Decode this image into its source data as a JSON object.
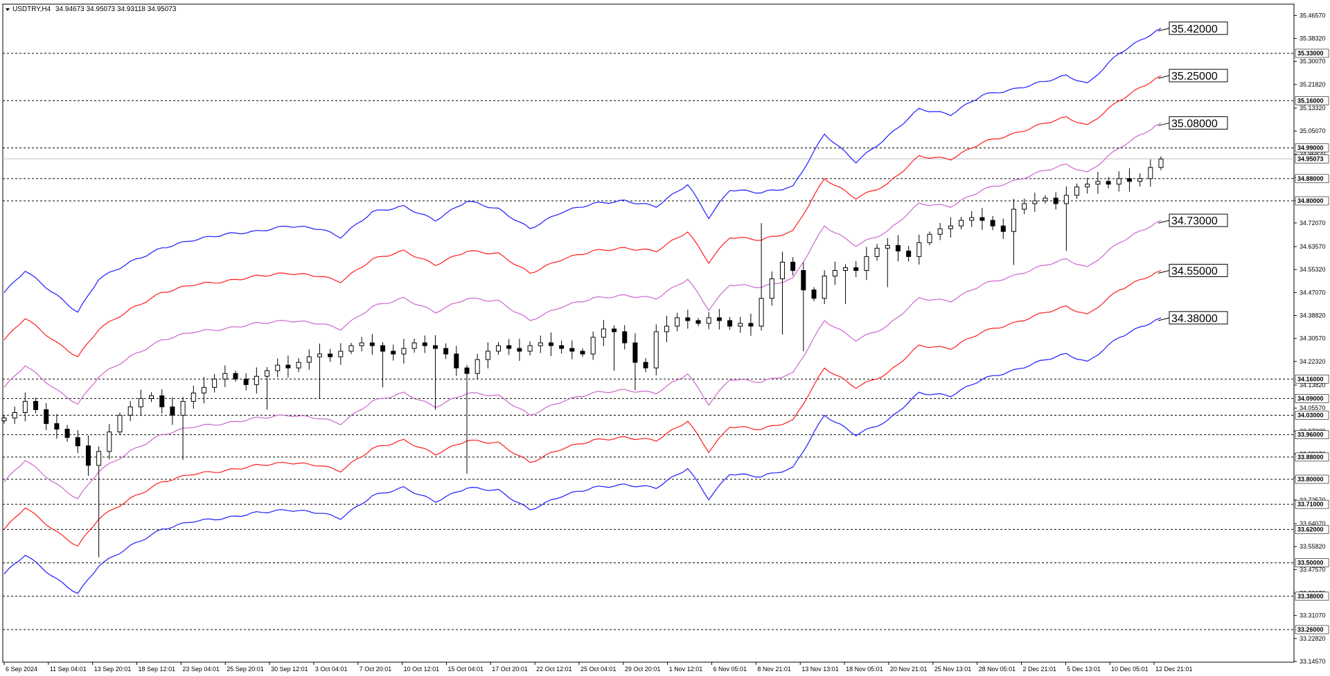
{
  "header": {
    "symbol": "USDTRY,H4",
    "ohlc": "34.94673 34.95073 34.93118 34.95073"
  },
  "colors": {
    "outer_band": "#1a1aff",
    "middle_band": "#ff1a1a",
    "inner_band": "#cc66cc",
    "candles": "#000000",
    "grid_line": "#000000",
    "bid_line": "#c0c0c0"
  },
  "chart_data": {
    "type": "candlestick",
    "title": "USDTRY,H4",
    "ylim": [
      33.1457,
      35.4667
    ],
    "y_ticks": [
      "35.46570",
      "35.38320",
      "35.30070",
      "35.21820",
      "35.13320",
      "35.05070",
      "34.96820",
      "34.88320",
      "34.80070",
      "34.72070",
      "34.63570",
      "34.55320",
      "34.47070",
      "34.38820",
      "34.30570",
      "34.22320",
      "34.13820",
      "34.05570",
      "33.97320",
      "33.89070",
      "33.80570",
      "33.72570",
      "33.64070",
      "33.55820",
      "33.47570",
      "33.39070",
      "33.31070",
      "33.22820",
      "33.14570"
    ],
    "x_ticks": [
      "6 Sep 2024",
      "11 Sep 04:01",
      "13 Sep 20:01",
      "18 Sep 12:01",
      "23 Sep 04:01",
      "25 Sep 20:01",
      "30 Sep 12:01",
      "3 Oct 04:01",
      "7 Oct 20:01",
      "10 Oct 12:01",
      "15 Oct 04:01",
      "17 Oct 20:01",
      "22 Oct 12:01",
      "25 Oct 04:01",
      "29 Oct 20:01",
      "1 Nov 12:01",
      "6 Nov 05:01",
      "8 Nov 21:01",
      "13 Nov 13:01",
      "18 Nov 05:01",
      "20 Nov 21:01",
      "25 Nov 13:01",
      "28 Nov 05:01",
      "2 Dec 21:01",
      "5 Dec 13:01",
      "10 Dec 05:01",
      "12 Dec 21:01"
    ],
    "horizontal_levels": [
      "35.33000",
      "35.16000",
      "34.99000",
      "34.88000",
      "34.80000",
      "34.16000",
      "34.09000",
      "34.03000",
      "33.96000",
      "33.88000",
      "33.80000",
      "33.71000",
      "33.62000",
      "33.50000",
      "33.38000",
      "33.26000"
    ],
    "current_price": "34.95073",
    "band_labels": [
      "35.42000",
      "35.25000",
      "35.08000",
      "34.73000",
      "34.55000",
      "34.38000"
    ],
    "series": [
      {
        "name": "upper_outer",
        "color_key": "outer_band",
        "points": [
          [
            0,
            34.47
          ],
          [
            2,
            34.55
          ],
          [
            5,
            34.46
          ],
          [
            7,
            34.4
          ],
          [
            9,
            34.52
          ],
          [
            12,
            34.58
          ],
          [
            15,
            34.63
          ],
          [
            18,
            34.66
          ],
          [
            21,
            34.68
          ],
          [
            24,
            34.69
          ],
          [
            27,
            34.71
          ],
          [
            30,
            34.7
          ],
          [
            32,
            34.67
          ],
          [
            35,
            34.76
          ],
          [
            38,
            34.78
          ],
          [
            41,
            34.73
          ],
          [
            44,
            34.8
          ],
          [
            47,
            34.77
          ],
          [
            50,
            34.7
          ],
          [
            53,
            34.76
          ],
          [
            56,
            34.79
          ],
          [
            59,
            34.8
          ],
          [
            62,
            34.78
          ],
          [
            65,
            34.86
          ],
          [
            67,
            34.74
          ],
          [
            69,
            34.84
          ],
          [
            72,
            34.83
          ],
          [
            75,
            34.85
          ],
          [
            78,
            35.04
          ],
          [
            81,
            34.94
          ],
          [
            84,
            35.03
          ],
          [
            87,
            35.13
          ],
          [
            90,
            35.11
          ],
          [
            93,
            35.18
          ],
          [
            96,
            35.2
          ],
          [
            99,
            35.23
          ],
          [
            101,
            35.25
          ],
          [
            103,
            35.22
          ],
          [
            106,
            35.33
          ],
          [
            110,
            35.42
          ]
        ]
      },
      {
        "name": "upper_middle",
        "color_key": "middle_band",
        "points": [
          [
            0,
            34.3
          ],
          [
            2,
            34.38
          ],
          [
            5,
            34.29
          ],
          [
            7,
            34.24
          ],
          [
            9,
            34.34
          ],
          [
            12,
            34.41
          ],
          [
            15,
            34.47
          ],
          [
            18,
            34.5
          ],
          [
            21,
            34.51
          ],
          [
            24,
            34.53
          ],
          [
            27,
            34.54
          ],
          [
            30,
            34.53
          ],
          [
            32,
            34.51
          ],
          [
            35,
            34.59
          ],
          [
            38,
            34.62
          ],
          [
            41,
            34.57
          ],
          [
            44,
            34.62
          ],
          [
            47,
            34.61
          ],
          [
            50,
            34.54
          ],
          [
            53,
            34.59
          ],
          [
            56,
            34.62
          ],
          [
            59,
            34.63
          ],
          [
            62,
            34.62
          ],
          [
            65,
            34.69
          ],
          [
            67,
            34.58
          ],
          [
            69,
            34.67
          ],
          [
            72,
            34.66
          ],
          [
            75,
            34.69
          ],
          [
            78,
            34.88
          ],
          [
            81,
            34.81
          ],
          [
            84,
            34.86
          ],
          [
            87,
            34.96
          ],
          [
            90,
            34.95
          ],
          [
            93,
            35.01
          ],
          [
            96,
            35.04
          ],
          [
            99,
            35.08
          ],
          [
            101,
            35.1
          ],
          [
            103,
            35.07
          ],
          [
            106,
            35.16
          ],
          [
            110,
            35.25
          ]
        ]
      },
      {
        "name": "upper_inner",
        "color_key": "inner_band",
        "points": [
          [
            0,
            34.13
          ],
          [
            2,
            34.21
          ],
          [
            5,
            34.12
          ],
          [
            7,
            34.07
          ],
          [
            9,
            34.17
          ],
          [
            12,
            34.24
          ],
          [
            15,
            34.3
          ],
          [
            18,
            34.33
          ],
          [
            21,
            34.34
          ],
          [
            24,
            34.36
          ],
          [
            27,
            34.37
          ],
          [
            30,
            34.36
          ],
          [
            32,
            34.34
          ],
          [
            35,
            34.42
          ],
          [
            38,
            34.45
          ],
          [
            41,
            34.4
          ],
          [
            44,
            34.45
          ],
          [
            47,
            34.44
          ],
          [
            50,
            34.37
          ],
          [
            53,
            34.42
          ],
          [
            56,
            34.45
          ],
          [
            59,
            34.46
          ],
          [
            62,
            34.45
          ],
          [
            65,
            34.52
          ],
          [
            67,
            34.41
          ],
          [
            69,
            34.5
          ],
          [
            72,
            34.49
          ],
          [
            75,
            34.52
          ],
          [
            78,
            34.71
          ],
          [
            81,
            34.64
          ],
          [
            84,
            34.69
          ],
          [
            87,
            34.79
          ],
          [
            90,
            34.78
          ],
          [
            93,
            34.84
          ],
          [
            96,
            34.87
          ],
          [
            99,
            34.91
          ],
          [
            101,
            34.93
          ],
          [
            103,
            34.9
          ],
          [
            106,
            34.99
          ],
          [
            110,
            35.08
          ]
        ]
      },
      {
        "name": "lower_inner",
        "color_key": "inner_band",
        "points": [
          [
            0,
            33.79
          ],
          [
            2,
            33.87
          ],
          [
            5,
            33.78
          ],
          [
            7,
            33.73
          ],
          [
            9,
            33.83
          ],
          [
            12,
            33.9
          ],
          [
            15,
            33.96
          ],
          [
            18,
            33.99
          ],
          [
            21,
            34.0
          ],
          [
            24,
            34.02
          ],
          [
            27,
            34.03
          ],
          [
            30,
            34.02
          ],
          [
            32,
            34.0
          ],
          [
            35,
            34.08
          ],
          [
            38,
            34.11
          ],
          [
            41,
            34.06
          ],
          [
            44,
            34.11
          ],
          [
            47,
            34.1
          ],
          [
            50,
            34.03
          ],
          [
            53,
            34.08
          ],
          [
            56,
            34.11
          ],
          [
            59,
            34.12
          ],
          [
            62,
            34.11
          ],
          [
            65,
            34.18
          ],
          [
            67,
            34.07
          ],
          [
            69,
            34.16
          ],
          [
            72,
            34.15
          ],
          [
            75,
            34.18
          ],
          [
            78,
            34.37
          ],
          [
            81,
            34.3
          ],
          [
            84,
            34.35
          ],
          [
            87,
            34.45
          ],
          [
            90,
            34.44
          ],
          [
            93,
            34.5
          ],
          [
            96,
            34.53
          ],
          [
            99,
            34.57
          ],
          [
            101,
            34.59
          ],
          [
            103,
            34.56
          ],
          [
            106,
            34.65
          ],
          [
            110,
            34.73
          ]
        ]
      },
      {
        "name": "lower_middle",
        "color_key": "middle_band",
        "points": [
          [
            0,
            33.62
          ],
          [
            2,
            33.7
          ],
          [
            5,
            33.61
          ],
          [
            7,
            33.56
          ],
          [
            9,
            33.66
          ],
          [
            12,
            33.73
          ],
          [
            15,
            33.79
          ],
          [
            18,
            33.82
          ],
          [
            21,
            33.83
          ],
          [
            24,
            33.85
          ],
          [
            27,
            33.86
          ],
          [
            30,
            33.85
          ],
          [
            32,
            33.83
          ],
          [
            35,
            33.91
          ],
          [
            38,
            33.94
          ],
          [
            41,
            33.89
          ],
          [
            44,
            33.94
          ],
          [
            47,
            33.93
          ],
          [
            50,
            33.86
          ],
          [
            53,
            33.91
          ],
          [
            56,
            33.94
          ],
          [
            59,
            33.95
          ],
          [
            62,
            33.94
          ],
          [
            65,
            34.01
          ],
          [
            67,
            33.9
          ],
          [
            69,
            33.99
          ],
          [
            72,
            33.98
          ],
          [
            75,
            34.01
          ],
          [
            78,
            34.2
          ],
          [
            81,
            34.13
          ],
          [
            84,
            34.18
          ],
          [
            87,
            34.28
          ],
          [
            90,
            34.27
          ],
          [
            93,
            34.33
          ],
          [
            96,
            34.36
          ],
          [
            99,
            34.4
          ],
          [
            101,
            34.42
          ],
          [
            103,
            34.39
          ],
          [
            106,
            34.48
          ],
          [
            110,
            34.55
          ]
        ]
      },
      {
        "name": "lower_outer",
        "color_key": "outer_band",
        "points": [
          [
            0,
            33.46
          ],
          [
            2,
            33.53
          ],
          [
            5,
            33.44
          ],
          [
            7,
            33.39
          ],
          [
            9,
            33.49
          ],
          [
            12,
            33.56
          ],
          [
            15,
            33.62
          ],
          [
            18,
            33.65
          ],
          [
            21,
            33.66
          ],
          [
            24,
            33.68
          ],
          [
            27,
            33.69
          ],
          [
            30,
            33.68
          ],
          [
            32,
            33.66
          ],
          [
            35,
            33.74
          ],
          [
            38,
            33.77
          ],
          [
            41,
            33.72
          ],
          [
            44,
            33.77
          ],
          [
            47,
            33.76
          ],
          [
            50,
            33.69
          ],
          [
            53,
            33.74
          ],
          [
            56,
            33.77
          ],
          [
            59,
            33.78
          ],
          [
            62,
            33.77
          ],
          [
            65,
            33.84
          ],
          [
            67,
            33.73
          ],
          [
            69,
            33.82
          ],
          [
            72,
            33.81
          ],
          [
            75,
            33.84
          ],
          [
            78,
            34.03
          ],
          [
            81,
            33.96
          ],
          [
            84,
            34.01
          ],
          [
            87,
            34.11
          ],
          [
            90,
            34.1
          ],
          [
            93,
            34.16
          ],
          [
            96,
            34.19
          ],
          [
            99,
            34.23
          ],
          [
            101,
            34.25
          ],
          [
            103,
            34.22
          ],
          [
            106,
            34.31
          ],
          [
            110,
            34.38
          ]
        ]
      }
    ],
    "candles_close": [
      34.02,
      34.04,
      34.08,
      34.05,
      34.0,
      33.98,
      33.95,
      33.92,
      33.85,
      33.9,
      33.97,
      34.03,
      34.06,
      34.09,
      34.1,
      34.06,
      34.03,
      34.08,
      34.11,
      34.13,
      34.16,
      34.18,
      34.16,
      34.14,
      34.17,
      34.19,
      34.21,
      34.2,
      34.22,
      34.24,
      34.25,
      34.24,
      34.26,
      34.28,
      34.29,
      34.28,
      34.26,
      34.25,
      34.27,
      34.29,
      34.28,
      34.27,
      34.25,
      34.2,
      34.18,
      34.23,
      34.26,
      34.28,
      34.27,
      34.26,
      34.28,
      34.29,
      34.28,
      34.27,
      34.26,
      34.25,
      34.31,
      34.34,
      34.33,
      34.29,
      34.22,
      34.2,
      34.33,
      34.35,
      34.38,
      34.37,
      34.36,
      34.38,
      34.37,
      34.35,
      34.36,
      34.35,
      34.45,
      34.52,
      34.58,
      34.55,
      34.48,
      34.45,
      34.53,
      34.55,
      34.56,
      34.55,
      34.6,
      34.63,
      34.64,
      34.62,
      34.6,
      34.65,
      34.68,
      34.7,
      34.71,
      34.73,
      34.74,
      34.73,
      34.71,
      34.69,
      34.77,
      34.79,
      34.8,
      34.81,
      34.79,
      34.82,
      34.85,
      34.86,
      34.87,
      34.86,
      34.88,
      34.87,
      34.88,
      34.92,
      34.95
    ]
  }
}
